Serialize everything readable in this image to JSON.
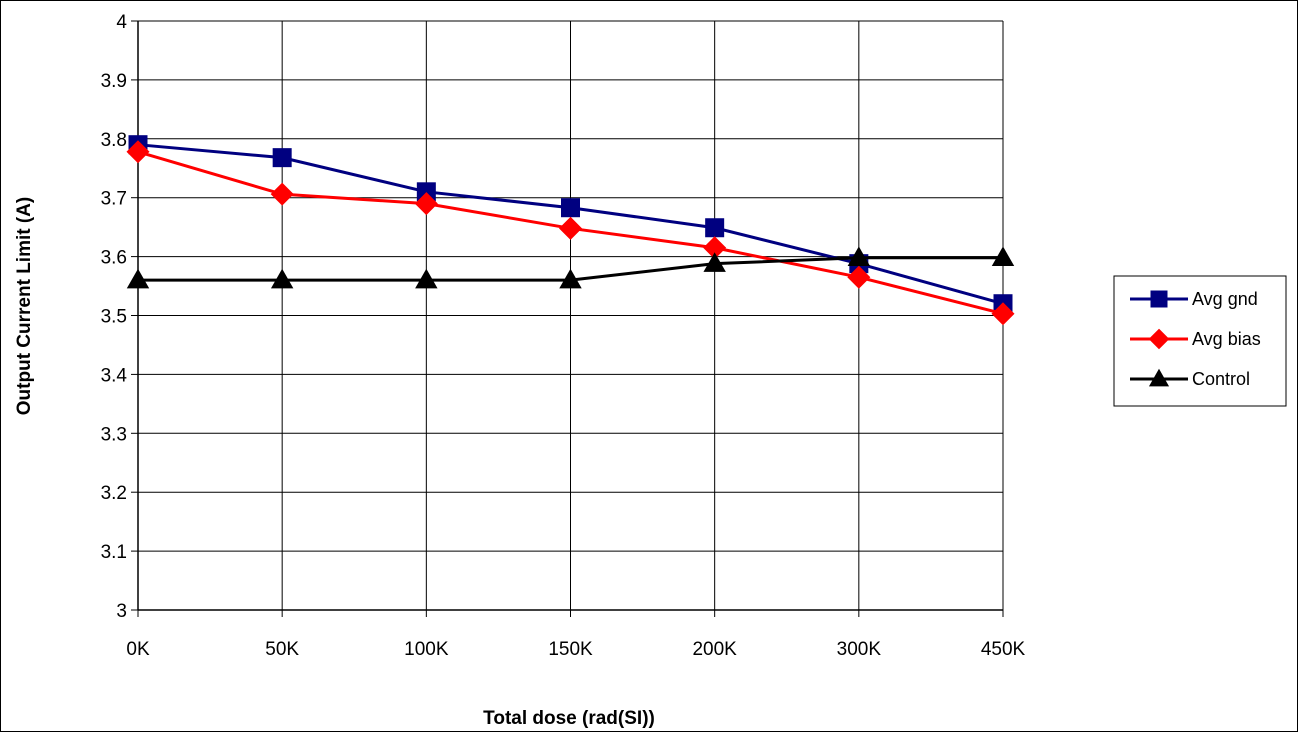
{
  "chart_data": {
    "type": "line",
    "title": "",
    "xlabel": "Total dose (rad(SI))",
    "ylabel": "Output Current Limit (A)",
    "categories": [
      "0K",
      "50K",
      "100K",
      "150K",
      "200K",
      "300K",
      "450K"
    ],
    "ylim": [
      3,
      4
    ],
    "yticks": [
      "3",
      "3.1",
      "3.2",
      "3.3",
      "3.4",
      "3.5",
      "3.6",
      "3.7",
      "3.8",
      "3.9",
      "4"
    ],
    "grid": true,
    "legend_position": "right",
    "series": [
      {
        "name": "Avg gnd",
        "color": "#000080",
        "marker": "square",
        "values": [
          3.79,
          3.768,
          3.71,
          3.683,
          3.649,
          3.588,
          3.52
        ]
      },
      {
        "name": "Avg bias",
        "color": "#ff0000",
        "marker": "diamond",
        "values": [
          3.778,
          3.706,
          3.69,
          3.648,
          3.615,
          3.565,
          3.503
        ]
      },
      {
        "name": "Control",
        "color": "#000000",
        "marker": "triangle",
        "values": [
          3.56,
          3.56,
          3.56,
          3.56,
          3.588,
          3.598,
          3.598
        ]
      }
    ]
  }
}
